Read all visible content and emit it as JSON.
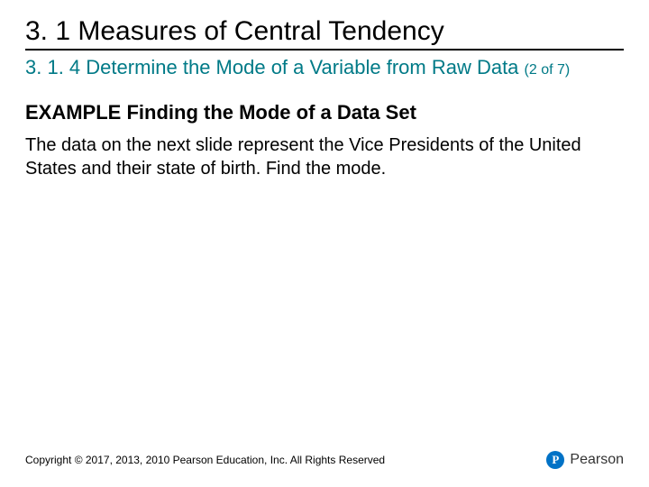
{
  "slide": {
    "title": "3. 1 Measures of Central Tendency",
    "subtitle_main": "3. 1. 4 Determine the Mode of a Variable from Raw Data",
    "subtitle_pager": "(2 of 7)",
    "example_heading": "EXAMPLE Finding the Mode of a Data Set",
    "body": "The data on the next slide represent the Vice Presidents of the United States and their state of birth. Find the mode.",
    "copyright": "Copyright © 2017, 2013, 2010 Pearson Education, Inc. All Rights Reserved",
    "brand_initial": "P",
    "brand_name": "Pearson"
  },
  "colors": {
    "subtitle": "#007a87",
    "brand_logo_bg": "#0072c6",
    "brand_logo_fg": "#ffffff",
    "text": "#000000",
    "background": "#ffffff"
  },
  "typography": {
    "title_fontsize": 30,
    "subtitle_fontsize": 22,
    "pager_fontsize": 16,
    "example_heading_fontsize": 22,
    "body_fontsize": 20,
    "copyright_fontsize": 12,
    "brand_name_fontsize": 16
  }
}
